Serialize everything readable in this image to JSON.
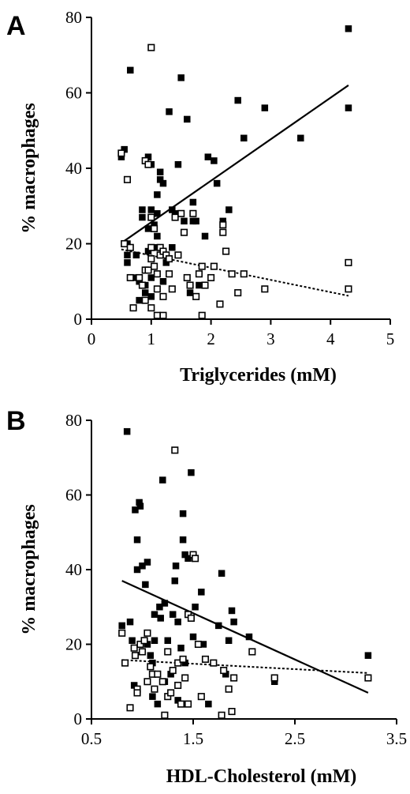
{
  "chart_data": [
    {
      "panel": "A",
      "type": "scatter",
      "title": "",
      "xlabel": "Triglycerides (mM)",
      "ylabel": "% macrophages",
      "xlim": [
        0,
        5
      ],
      "ylim": [
        0,
        80
      ],
      "xticks": [
        "0",
        "1",
        "2",
        "3",
        "4",
        "5"
      ],
      "yticks": [
        "0",
        "20",
        "40",
        "60",
        "80"
      ],
      "grid": false,
      "legend": "none",
      "series": [
        {
          "marker": "filled-square",
          "points": [
            [
              0.5,
              43
            ],
            [
              0.55,
              45
            ],
            [
              0.6,
              20
            ],
            [
              0.6,
              17
            ],
            [
              0.6,
              15
            ],
            [
              0.65,
              66
            ],
            [
              0.7,
              11
            ],
            [
              0.75,
              17
            ],
            [
              0.8,
              10
            ],
            [
              0.8,
              5
            ],
            [
              0.85,
              27
            ],
            [
              0.85,
              29
            ],
            [
              0.9,
              13
            ],
            [
              0.9,
              9
            ],
            [
              0.9,
              7
            ],
            [
              0.95,
              43
            ],
            [
              0.95,
              24
            ],
            [
              0.95,
              18
            ],
            [
              1.0,
              41
            ],
            [
              1.0,
              29
            ],
            [
              1.0,
              11
            ],
            [
              1.0,
              6
            ],
            [
              1.05,
              25
            ],
            [
              1.05,
              19
            ],
            [
              1.1,
              33
            ],
            [
              1.1,
              28
            ],
            [
              1.1,
              22
            ],
            [
              1.15,
              39
            ],
            [
              1.15,
              37
            ],
            [
              1.2,
              36
            ],
            [
              1.2,
              10
            ],
            [
              1.25,
              15
            ],
            [
              1.3,
              55
            ],
            [
              1.35,
              19
            ],
            [
              1.35,
              29
            ],
            [
              1.4,
              28
            ],
            [
              1.45,
              41
            ],
            [
              1.5,
              64
            ],
            [
              1.55,
              26
            ],
            [
              1.6,
              53
            ],
            [
              1.65,
              7
            ],
            [
              1.7,
              31
            ],
            [
              1.7,
              26
            ],
            [
              1.75,
              26
            ],
            [
              1.8,
              9
            ],
            [
              1.9,
              22
            ],
            [
              1.95,
              43
            ],
            [
              2.05,
              42
            ],
            [
              2.1,
              36
            ],
            [
              2.2,
              26
            ],
            [
              2.3,
              29
            ],
            [
              2.45,
              58
            ],
            [
              2.55,
              48
            ],
            [
              2.9,
              56
            ],
            [
              3.5,
              48
            ],
            [
              4.3,
              77
            ],
            [
              4.3,
              56
            ]
          ]
        },
        {
          "marker": "open-square",
          "points": [
            [
              0.5,
              44
            ],
            [
              0.55,
              20
            ],
            [
              0.6,
              37
            ],
            [
              0.65,
              19
            ],
            [
              0.65,
              11
            ],
            [
              0.7,
              3
            ],
            [
              0.8,
              11
            ],
            [
              0.85,
              9
            ],
            [
              0.9,
              42
            ],
            [
              0.9,
              13
            ],
            [
              0.9,
              5
            ],
            [
              0.95,
              41
            ],
            [
              0.95,
              13
            ],
            [
              1.0,
              72
            ],
            [
              1.0,
              27
            ],
            [
              1.0,
              19
            ],
            [
              1.0,
              16
            ],
            [
              1.0,
              3
            ],
            [
              1.05,
              24
            ],
            [
              1.05,
              14
            ],
            [
              1.1,
              12
            ],
            [
              1.1,
              8
            ],
            [
              1.1,
              1
            ],
            [
              1.15,
              19
            ],
            [
              1.15,
              17
            ],
            [
              1.2,
              18
            ],
            [
              1.2,
              6
            ],
            [
              1.2,
              1
            ],
            [
              1.25,
              17
            ],
            [
              1.3,
              16
            ],
            [
              1.3,
              12
            ],
            [
              1.35,
              8
            ],
            [
              1.4,
              27
            ],
            [
              1.45,
              17
            ],
            [
              1.5,
              28
            ],
            [
              1.55,
              23
            ],
            [
              1.6,
              11
            ],
            [
              1.65,
              9
            ],
            [
              1.7,
              28
            ],
            [
              1.75,
              6
            ],
            [
              1.8,
              12
            ],
            [
              1.85,
              14
            ],
            [
              1.85,
              1
            ],
            [
              1.9,
              9
            ],
            [
              2.0,
              11
            ],
            [
              2.05,
              14
            ],
            [
              2.15,
              4
            ],
            [
              2.2,
              25
            ],
            [
              2.2,
              23
            ],
            [
              2.25,
              18
            ],
            [
              2.35,
              12
            ],
            [
              2.45,
              7
            ],
            [
              2.55,
              12
            ],
            [
              2.9,
              8
            ],
            [
              4.3,
              15
            ],
            [
              4.3,
              8
            ]
          ]
        }
      ],
      "fit_lines": [
        {
          "style": "solid",
          "points": [
            [
              0.5,
              20.2
            ],
            [
              4.3,
              62
            ]
          ]
        },
        {
          "style": "dotted",
          "points": [
            [
              0.5,
              18.5
            ],
            [
              4.3,
              6.2
            ]
          ]
        }
      ]
    },
    {
      "panel": "B",
      "type": "scatter",
      "title": "",
      "xlabel": "HDL-Cholesterol (mM)",
      "ylabel": "% macrophages",
      "xlim": [
        0.5,
        3.5
      ],
      "ylim": [
        0,
        80
      ],
      "xticks": [
        "0.5",
        "1.5",
        "2.5",
        "3.5"
      ],
      "yticks": [
        "0",
        "20",
        "40",
        "60",
        "80"
      ],
      "grid": false,
      "legend": "none",
      "series": [
        {
          "marker": "filled-square",
          "points": [
            [
              0.8,
              25
            ],
            [
              0.85,
              77
            ],
            [
              0.88,
              26
            ],
            [
              0.9,
              21
            ],
            [
              0.92,
              9
            ],
            [
              0.93,
              56
            ],
            [
              0.95,
              48
            ],
            [
              0.95,
              40
            ],
            [
              0.95,
              8
            ],
            [
              0.97,
              58
            ],
            [
              0.98,
              57
            ],
            [
              1.0,
              41
            ],
            [
              1.03,
              36
            ],
            [
              1.05,
              42
            ],
            [
              1.05,
              20
            ],
            [
              1.08,
              17
            ],
            [
              1.1,
              15
            ],
            [
              1.1,
              6
            ],
            [
              1.12,
              28
            ],
            [
              1.12,
              21
            ],
            [
              1.15,
              4
            ],
            [
              1.17,
              30
            ],
            [
              1.18,
              27
            ],
            [
              1.2,
              64
            ],
            [
              1.22,
              31
            ],
            [
              1.22,
              10
            ],
            [
              1.25,
              21
            ],
            [
              1.28,
              12
            ],
            [
              1.3,
              28
            ],
            [
              1.32,
              37
            ],
            [
              1.33,
              41
            ],
            [
              1.35,
              26
            ],
            [
              1.35,
              5
            ],
            [
              1.38,
              19
            ],
            [
              1.4,
              55
            ],
            [
              1.4,
              48
            ],
            [
              1.42,
              44
            ],
            [
              1.42,
              15
            ],
            [
              1.45,
              43
            ],
            [
              1.48,
              66
            ],
            [
              1.5,
              22
            ],
            [
              1.52,
              30
            ],
            [
              1.58,
              34
            ],
            [
              1.6,
              20
            ],
            [
              1.65,
              4
            ],
            [
              1.75,
              25
            ],
            [
              1.78,
              39
            ],
            [
              1.82,
              12
            ],
            [
              1.85,
              21
            ],
            [
              1.88,
              29
            ],
            [
              1.9,
              26
            ],
            [
              2.05,
              22
            ],
            [
              2.3,
              10
            ],
            [
              3.22,
              17
            ]
          ]
        },
        {
          "marker": "open-square",
          "points": [
            [
              0.8,
              23
            ],
            [
              0.83,
              15
            ],
            [
              0.88,
              3
            ],
            [
              0.92,
              19
            ],
            [
              0.93,
              17
            ],
            [
              0.95,
              8
            ],
            [
              0.95,
              7
            ],
            [
              0.98,
              20
            ],
            [
              1.0,
              18
            ],
            [
              1.02,
              21
            ],
            [
              1.05,
              23
            ],
            [
              1.05,
              10
            ],
            [
              1.08,
              14
            ],
            [
              1.1,
              12
            ],
            [
              1.12,
              8
            ],
            [
              1.15,
              12
            ],
            [
              1.2,
              10
            ],
            [
              1.22,
              1
            ],
            [
              1.25,
              18
            ],
            [
              1.25,
              6
            ],
            [
              1.28,
              7
            ],
            [
              1.3,
              13
            ],
            [
              1.32,
              72
            ],
            [
              1.35,
              15
            ],
            [
              1.35,
              9
            ],
            [
              1.38,
              4
            ],
            [
              1.4,
              16
            ],
            [
              1.42,
              11
            ],
            [
              1.45,
              28
            ],
            [
              1.45,
              4
            ],
            [
              1.48,
              27
            ],
            [
              1.5,
              44
            ],
            [
              1.52,
              43
            ],
            [
              1.55,
              20
            ],
            [
              1.58,
              6
            ],
            [
              1.62,
              16
            ],
            [
              1.7,
              15
            ],
            [
              1.78,
              1
            ],
            [
              1.8,
              13
            ],
            [
              1.85,
              8
            ],
            [
              1.88,
              2
            ],
            [
              1.9,
              11
            ],
            [
              2.08,
              18
            ],
            [
              2.3,
              11
            ],
            [
              3.22,
              11
            ]
          ]
        }
      ],
      "fit_lines": [
        {
          "style": "solid",
          "points": [
            [
              0.8,
              37
            ],
            [
              3.22,
              7
            ]
          ]
        },
        {
          "style": "dotted",
          "points": [
            [
              0.8,
              15.8
            ],
            [
              3.22,
              12.3
            ]
          ]
        }
      ]
    }
  ]
}
